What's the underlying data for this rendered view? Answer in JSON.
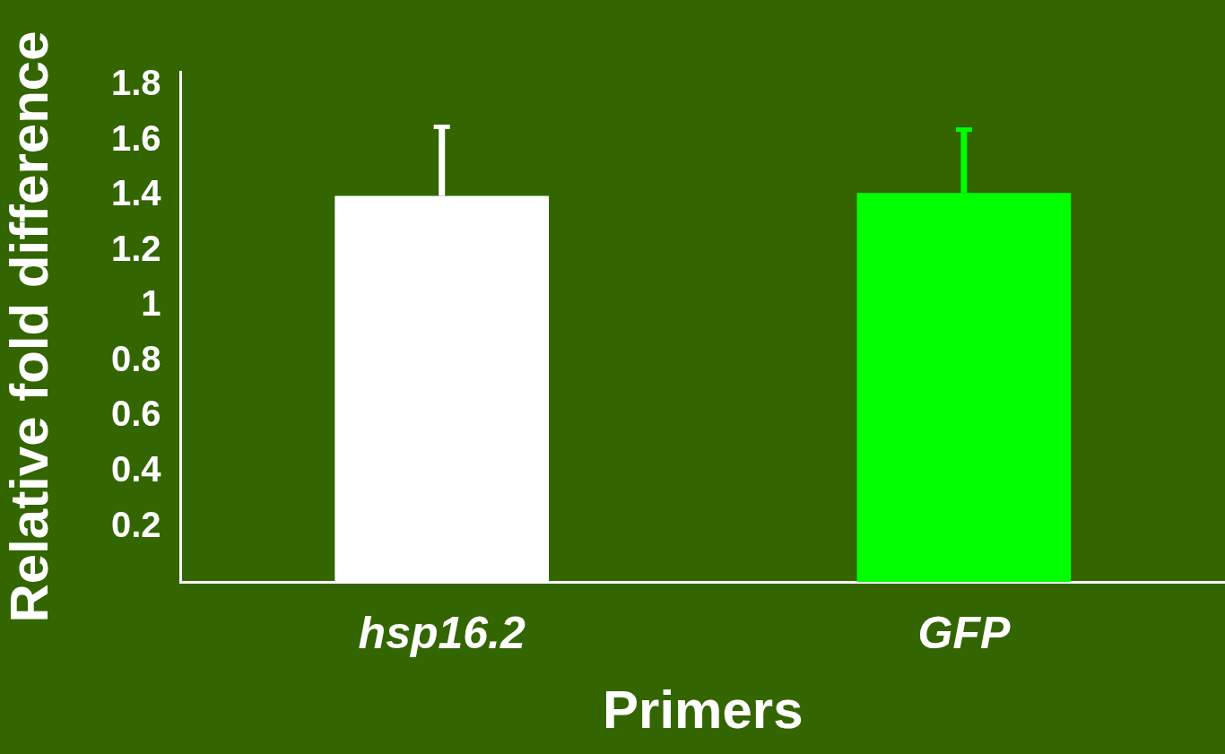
{
  "chart_data": {
    "type": "bar",
    "xlabel": "Primers",
    "ylabel": "Relative fold difference",
    "categories": [
      "hsp16.2",
      "GFP"
    ],
    "values": [
      1.4,
      1.41
    ],
    "colors": [
      "#ffffff",
      "#00ff00"
    ],
    "errors": [
      [
        1.4,
        1.65
      ],
      [
        1.41,
        1.64
      ]
    ],
    "ylim": [
      0,
      1.85
    ],
    "yticks": [
      0.2,
      0.4,
      0.6,
      0.8,
      1,
      1.2,
      1.4,
      1.6,
      1.8
    ]
  }
}
